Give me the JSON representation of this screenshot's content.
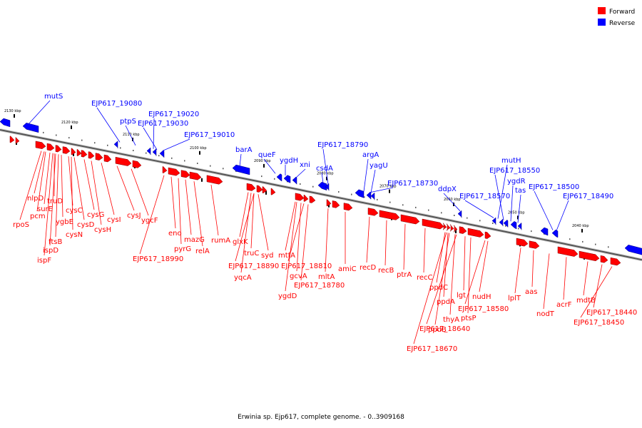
{
  "legend": [
    {
      "label": "Forward",
      "color": "#ff0000"
    },
    {
      "label": "Reverse",
      "color": "#0000ff"
    }
  ],
  "caption": "Erwinia sp. Ejp617, complete genome. - 0..3909168",
  "colors": {
    "forward": "#ff0000",
    "reverse": "#0000ff",
    "axis": "#555555"
  },
  "scale_marks": [
    {
      "label": "2130 kbp",
      "kbp": 2130
    },
    {
      "label": "2120 kbp",
      "kbp": 2120
    },
    {
      "label": "2110 kbp",
      "kbp": 2110
    },
    {
      "label": "2100 kbp",
      "kbp": 2100
    },
    {
      "label": "2090 kbp",
      "kbp": 2090
    },
    {
      "label": "2080 kbp",
      "kbp": 2080
    },
    {
      "label": "2070 kbp",
      "kbp": 2070
    },
    {
      "label": "2060 kbp",
      "kbp": 2060
    },
    {
      "label": "2050 kbp",
      "kbp": 2050
    },
    {
      "label": "2040 kbp",
      "kbp": 2040
    }
  ],
  "reverse_genes": [
    {
      "name": "mutS"
    },
    {
      "name": "EJP617_19080"
    },
    {
      "name": "ptpS"
    },
    {
      "name": "EJP617_19020"
    },
    {
      "name": "EJP617_19030"
    },
    {
      "name": "EJP617_19010"
    },
    {
      "name": "barA"
    },
    {
      "name": "queF"
    },
    {
      "name": "ygdH"
    },
    {
      "name": "xni"
    },
    {
      "name": "csdA"
    },
    {
      "name": "EJP617_18790"
    },
    {
      "name": "argA"
    },
    {
      "name": "yagU"
    },
    {
      "name": "EJP617_18730"
    },
    {
      "name": "ddpX"
    },
    {
      "name": "EJP617_18570"
    },
    {
      "name": "mutH"
    },
    {
      "name": "EJP617_18550"
    },
    {
      "name": "ygdR"
    },
    {
      "name": "tas"
    },
    {
      "name": "EJP617_18500"
    },
    {
      "name": "EJP617_18490"
    }
  ],
  "forward_genes": [
    {
      "name": "nlpD"
    },
    {
      "name": "truD"
    },
    {
      "name": "surE"
    },
    {
      "name": "pcm"
    },
    {
      "name": "rpoS"
    },
    {
      "name": "cysC"
    },
    {
      "name": "ygbE"
    },
    {
      "name": "ftsB"
    },
    {
      "name": "ispD"
    },
    {
      "name": "ispF"
    },
    {
      "name": "cysD"
    },
    {
      "name": "cysN"
    },
    {
      "name": "cysG"
    },
    {
      "name": "cysH"
    },
    {
      "name": "cysI"
    },
    {
      "name": "cysJ"
    },
    {
      "name": "ygcF"
    },
    {
      "name": "EJP617_18990"
    },
    {
      "name": "eno"
    },
    {
      "name": "pyrG"
    },
    {
      "name": "mazG"
    },
    {
      "name": "relA"
    },
    {
      "name": "rumA"
    },
    {
      "name": "glxK"
    },
    {
      "name": "truC"
    },
    {
      "name": "syd"
    },
    {
      "name": "EJP617_18890"
    },
    {
      "name": "yqcA"
    },
    {
      "name": "mtfA"
    },
    {
      "name": "EJP617_18810"
    },
    {
      "name": "gcvA"
    },
    {
      "name": "ygdD"
    },
    {
      "name": "EJP617_18780"
    },
    {
      "name": "mltA"
    },
    {
      "name": "amiC"
    },
    {
      "name": "recD"
    },
    {
      "name": "recB"
    },
    {
      "name": "ptrA"
    },
    {
      "name": "recC"
    },
    {
      "name": "ppdC"
    },
    {
      "name": "ppdA"
    },
    {
      "name": "lgt"
    },
    {
      "name": "thyA"
    },
    {
      "name": "ptsP"
    },
    {
      "name": "ppdB"
    },
    {
      "name": "EJP617_18640"
    },
    {
      "name": "EJP617_18670"
    },
    {
      "name": "EJP617_18580"
    },
    {
      "name": "nudH"
    },
    {
      "name": "lplT"
    },
    {
      "name": "aas"
    },
    {
      "name": "nodT"
    },
    {
      "name": "acrF"
    },
    {
      "name": "mdtB"
    },
    {
      "name": "EJP617_18440"
    },
    {
      "name": "EJP617_18450"
    }
  ]
}
